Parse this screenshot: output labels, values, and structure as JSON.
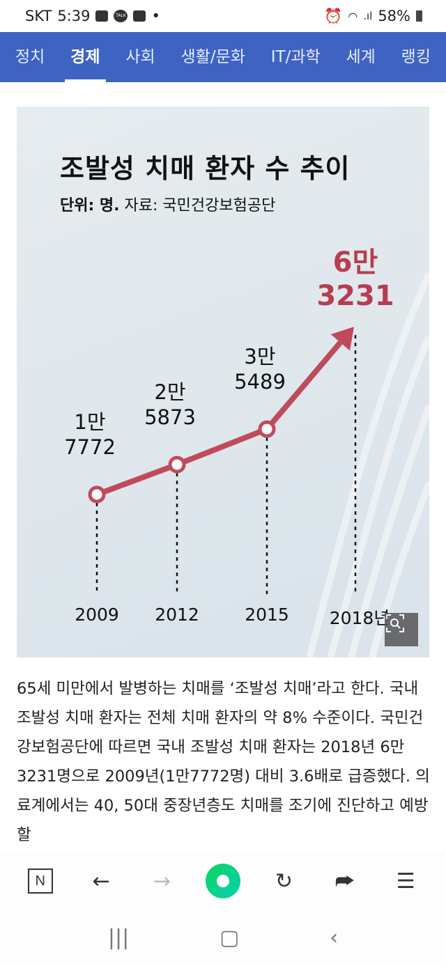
{
  "status": {
    "carrier": "SKT",
    "time": "5:39",
    "battery": "58%",
    "talk": "TALK"
  },
  "nav": {
    "tabs": [
      "정치",
      "경제",
      "사회",
      "생활/문화",
      "IT/과학",
      "세계",
      "랭킹"
    ],
    "active": 1
  },
  "chart_data": {
    "type": "line",
    "title": "조발성 치매 환자 수 추이",
    "subtitle_unit": "단위: 명.",
    "subtitle_source": "자료: 국민건강보험공단",
    "x": [
      "2009",
      "2012",
      "2015",
      "2018년"
    ],
    "values": [
      17772,
      25873,
      35489,
      63231
    ],
    "value_labels": [
      [
        "1만",
        "7772"
      ],
      [
        "2만",
        "5873"
      ],
      [
        "3만",
        "5489"
      ],
      [
        "6만",
        "3231"
      ]
    ],
    "line_color": "#c04a5c"
  },
  "article": {
    "text": "65세 미만에서 발병하는 치매를 ‘조발성 치매’라고 한다. 국내 조발성 치매 환자는 전체 치매 환자의 약 8% 수준이다. 국민건강보험공단에 따르면 국내 조발성 치매 환자는 2018년 6만3231명으로 2009년(1만7772명) 대비 3.6배로 급증했다. 의료계에서는 40, 50대 중장년층도 치매를 조기에 진단하고 예방할"
  },
  "toolbar": {
    "n_label": "N",
    "back": "←",
    "forward": "→",
    "reload": "↻",
    "share": "⮫",
    "menu": "☰"
  },
  "sysnav": {
    "recents": "|||",
    "home": "▢",
    "back": "‹"
  }
}
